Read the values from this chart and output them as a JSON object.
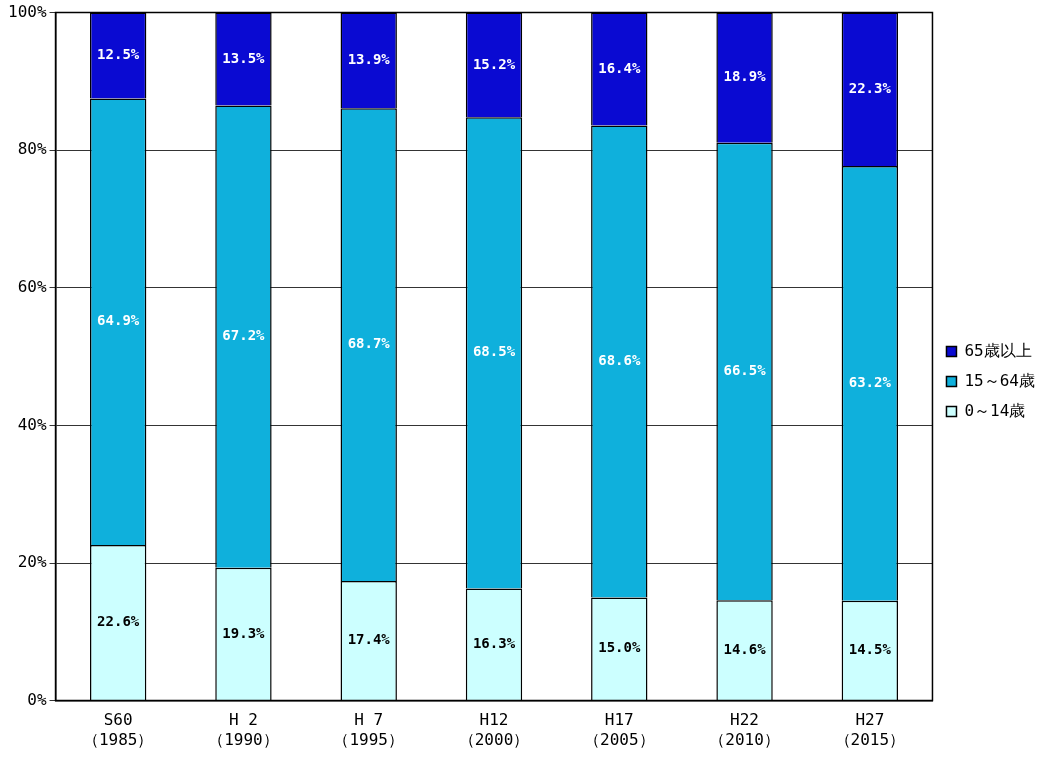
{
  "chart_data": {
    "type": "bar",
    "stacked": true,
    "categories": [
      "S60\n（1985）",
      "H 2\n（1990）",
      "H 7\n（1995）",
      "H12\n（2000）",
      "H17\n（2005）",
      "H22\n（2010）",
      "H27\n（2015）"
    ],
    "series": [
      {
        "name": "0～14歳",
        "color": "#ccffff",
        "values": [
          22.6,
          19.3,
          17.4,
          16.3,
          15.0,
          14.6,
          14.5
        ],
        "value_labels": [
          "22.6%",
          "19.3%",
          "17.4%",
          "16.3%",
          "15.0%",
          "14.6%",
          "14.5%"
        ]
      },
      {
        "name": "15～64歳",
        "color": "#0fb0dc",
        "values": [
          64.9,
          67.2,
          68.7,
          68.5,
          68.6,
          66.5,
          63.2
        ],
        "value_labels": [
          "64.9%",
          "67.2%",
          "68.7%",
          "68.5%",
          "68.6%",
          "66.5%",
          "63.2%"
        ]
      },
      {
        "name": "65歳以上",
        "color": "#0a0ad2",
        "values": [
          12.5,
          13.5,
          13.9,
          15.2,
          16.4,
          18.9,
          22.3
        ],
        "value_labels": [
          "12.5%",
          "13.5%",
          "13.9%",
          "15.2%",
          "16.4%",
          "18.9%",
          "22.3%"
        ]
      }
    ],
    "ylim": [
      0,
      100
    ],
    "yticks": [
      {
        "value": 0,
        "label": "0%"
      },
      {
        "value": 20,
        "label": "20%"
      },
      {
        "value": 40,
        "label": "40%"
      },
      {
        "value": 60,
        "label": "60%"
      },
      {
        "value": 80,
        "label": "80%"
      },
      {
        "value": 100,
        "label": "100%"
      }
    ],
    "grid": "y",
    "legend": "right"
  }
}
